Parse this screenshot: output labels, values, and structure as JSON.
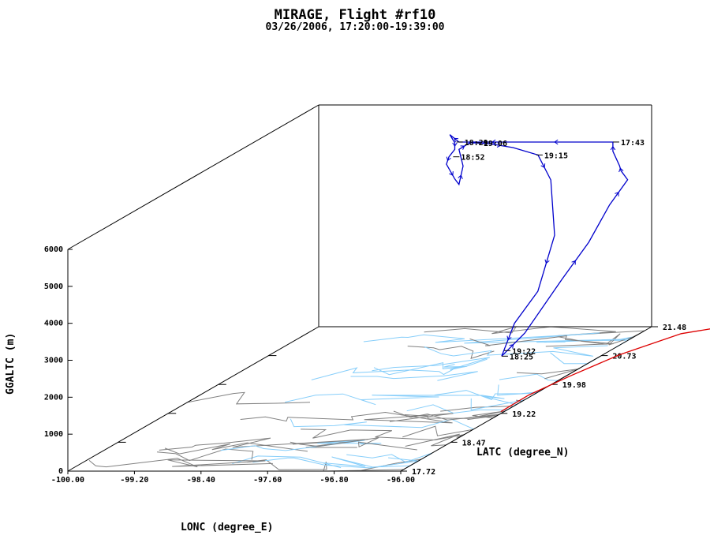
{
  "chart_data": {
    "type": "line",
    "title": "MIRAGE, Flight #rf10",
    "subtitle": "03/26/2006, 17:20:00-19:39:00",
    "xlabel": "LONC (degree_E)",
    "ylabel": "LATC (degree_N)",
    "zlabel": "GGALTC (m)",
    "xlim": [
      -100.0,
      -96.0
    ],
    "ylim": [
      17.72,
      21.48
    ],
    "zlim": [
      0,
      6000
    ],
    "x_ticks": [
      "-100.00",
      "-99.20",
      "-98.40",
      "-97.60",
      "-96.80",
      "-96.00"
    ],
    "y_ticks": [
      "17.72",
      "18.47",
      "19.22",
      "19.98",
      "20.73",
      "21.48"
    ],
    "z_ticks": [
      "0",
      "1000",
      "2000",
      "3000",
      "4000",
      "5000",
      "6000"
    ],
    "series": [
      {
        "type": "flight_track_3d",
        "color": "#0000cc",
        "points": [
          {
            "lon": -96.03,
            "lat": 19.27,
            "alt": 1500
          },
          {
            "lon": -96.08,
            "lat": 19.68,
            "alt": 1700
          },
          {
            "lon": -96.06,
            "lat": 20.21,
            "alt": 2600
          },
          {
            "lon": -96.05,
            "lat": 20.6,
            "alt": 3200
          },
          {
            "lon": -96.04,
            "lat": 20.9,
            "alt": 3900
          },
          {
            "lon": -96.0,
            "lat": 21.12,
            "alt": 4350
          },
          {
            "lon": -96.0,
            "lat": 21.02,
            "alt": 4700
          },
          {
            "lon": -96.0,
            "lat": 21.0,
            "alt": 4850
          },
          {
            "lon": -96.0,
            "lat": 20.9,
            "alt": 5350
          },
          {
            "lon": -96.0,
            "lat": 20.9,
            "alt": 5600
          },
          {
            "lon": -96.5,
            "lat": 20.9,
            "alt": 5600
          },
          {
            "lon": -96.9,
            "lat": 20.9,
            "alt": 5600
          },
          {
            "lon": -97.3,
            "lat": 20.9,
            "alt": 5600
          },
          {
            "lon": -97.6,
            "lat": 20.9,
            "alt": 5600
          },
          {
            "lon": -97.85,
            "lat": 20.9,
            "alt": 5600
          },
          {
            "lon": -97.96,
            "lat": 20.9,
            "alt": 5800
          },
          {
            "lon": -97.9,
            "lat": 20.9,
            "alt": 5580
          },
          {
            "lon": -97.9,
            "lat": 20.9,
            "alt": 5400
          },
          {
            "lon": -97.97,
            "lat": 20.9,
            "alt": 5200
          },
          {
            "lon": -98.0,
            "lat": 20.9,
            "alt": 5000
          },
          {
            "lon": -97.95,
            "lat": 20.9,
            "alt": 4800
          },
          {
            "lon": -97.9,
            "lat": 20.9,
            "alt": 4600
          },
          {
            "lon": -97.85,
            "lat": 20.9,
            "alt": 4450
          },
          {
            "lon": -97.8,
            "lat": 20.9,
            "alt": 4950
          },
          {
            "lon": -97.85,
            "lat": 20.9,
            "alt": 5400
          },
          {
            "lon": -97.72,
            "lat": 20.9,
            "alt": 5580
          },
          {
            "lon": -97.5,
            "lat": 20.9,
            "alt": 5560
          },
          {
            "lon": -97.2,
            "lat": 20.9,
            "alt": 5450
          },
          {
            "lon": -96.9,
            "lat": 20.9,
            "alt": 5250
          },
          {
            "lon": -96.65,
            "lat": 20.78,
            "alt": 4700
          },
          {
            "lon": -96.3,
            "lat": 20.4,
            "alt": 3600
          },
          {
            "lon": -96.1,
            "lat": 19.9,
            "alt": 2600
          },
          {
            "lon": -96.1,
            "lat": 19.55,
            "alt": 2100
          },
          {
            "lon": -96.03,
            "lat": 19.27,
            "alt": 1500
          }
        ],
        "time_labels": [
          {
            "text": "17:43",
            "lon": -96.0,
            "lat": 20.9,
            "alt": 5600
          },
          {
            "text": "18:29",
            "lon": -97.88,
            "lat": 20.9,
            "alt": 5600
          },
          {
            "text": "19:06",
            "lon": -97.65,
            "lat": 20.9,
            "alt": 5580
          },
          {
            "text": "18:52",
            "lon": -97.92,
            "lat": 20.9,
            "alt": 5200
          },
          {
            "text": "19:15",
            "lon": -96.92,
            "lat": 20.9,
            "alt": 5250
          },
          {
            "text": "18:25",
            "lon": -96.03,
            "lat": 19.27,
            "alt": 1500
          },
          {
            "text": "19:22",
            "lon": -96.0,
            "lat": 19.27,
            "alt": 1650
          }
        ]
      },
      {
        "type": "ground_track",
        "color": "#dd0000",
        "points": [
          {
            "lon": -96.04,
            "lat": 19.27
          },
          {
            "lon": -96.05,
            "lat": 19.7
          },
          {
            "lon": -95.95,
            "lat": 20.2
          },
          {
            "lon": -95.8,
            "lat": 20.75
          },
          {
            "lon": -95.5,
            "lat": 21.3
          },
          {
            "lon": -95.2,
            "lat": 21.45
          }
        ]
      }
    ],
    "grid": false,
    "legend": "none"
  }
}
